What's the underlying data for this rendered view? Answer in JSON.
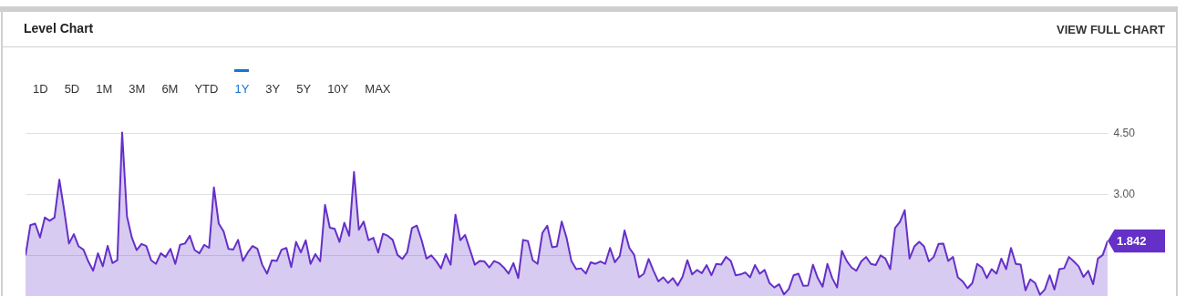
{
  "chart_data": {
    "type": "area",
    "title": "Level Chart",
    "categories": [
      null,
      null,
      null,
      null,
      null,
      null,
      null,
      null,
      null,
      null,
      null,
      null,
      null,
      null,
      null,
      null,
      null,
      null,
      null,
      null,
      null,
      null,
      null,
      null,
      null,
      null,
      null,
      null,
      null,
      null,
      null,
      null,
      null,
      null,
      null,
      null,
      null,
      null,
      null,
      null,
      null,
      null,
      null,
      null,
      null,
      null,
      null,
      null,
      null,
      null,
      null,
      null,
      null,
      null,
      null,
      null,
      null,
      null,
      null,
      null,
      null,
      null,
      null,
      null,
      null,
      null,
      null,
      null,
      null,
      null,
      null,
      null,
      null,
      null,
      null,
      null,
      null,
      null,
      null,
      null,
      null,
      null,
      null,
      null,
      null,
      null,
      null,
      null,
      null,
      null,
      null,
      null,
      null,
      null,
      null,
      null,
      null,
      null,
      null,
      null,
      null,
      null,
      null,
      null,
      null,
      null,
      null,
      null,
      null,
      null,
      null,
      null,
      null,
      null,
      null,
      null,
      null,
      null,
      null,
      null,
      null,
      null,
      null,
      null,
      null,
      null,
      null,
      null,
      null,
      null,
      null,
      null,
      null,
      null,
      null,
      null,
      null,
      null,
      null,
      null,
      null,
      null,
      null,
      null,
      null,
      null,
      null,
      null,
      null,
      null,
      null,
      null,
      null,
      null,
      null,
      null,
      null,
      null,
      null,
      null,
      null,
      null,
      null,
      null,
      null,
      null,
      null,
      null,
      null,
      null,
      null,
      null,
      null,
      null,
      null,
      null,
      null,
      null,
      null,
      null,
      null,
      null,
      null,
      null,
      null,
      null,
      null,
      null,
      null,
      null,
      null,
      null,
      null,
      null,
      null,
      null,
      null,
      null,
      null,
      null,
      null,
      null,
      null,
      null,
      null,
      null,
      null,
      null,
      null,
      null,
      null,
      null,
      null,
      null,
      null,
      null,
      null,
      null,
      null,
      null,
      null,
      null,
      null,
      null,
      null
    ],
    "series": [
      {
        "color": "#6530c8",
        "values": [
          1.49,
          2.23,
          2.27,
          1.93,
          2.42,
          2.34,
          2.42,
          3.35,
          2.6,
          1.78,
          2.01,
          1.71,
          1.63,
          1.34,
          1.11,
          1.54,
          1.22,
          1.72,
          1.3,
          1.37,
          4.51,
          2.45,
          1.93,
          1.62,
          1.77,
          1.72,
          1.37,
          1.28,
          1.54,
          1.45,
          1.65,
          1.28,
          1.75,
          1.78,
          1.97,
          1.62,
          1.54,
          1.75,
          1.67,
          3.16,
          2.27,
          2.08,
          1.65,
          1.63,
          1.87,
          1.35,
          1.56,
          1.72,
          1.65,
          1.26,
          1.04,
          1.37,
          1.35,
          1.63,
          1.67,
          1.2,
          1.82,
          1.56,
          1.86,
          1.28,
          1.52,
          1.34,
          2.73,
          2.17,
          2.14,
          1.82,
          2.29,
          1.97,
          3.54,
          2.12,
          2.32,
          1.86,
          1.92,
          1.56,
          2.02,
          1.97,
          1.87,
          1.5,
          1.4,
          1.56,
          2.16,
          2.22,
          1.86,
          1.41,
          1.49,
          1.35,
          1.17,
          1.52,
          1.26,
          2.49,
          1.86,
          1.99,
          1.63,
          1.26,
          1.35,
          1.34,
          1.19,
          1.35,
          1.3,
          1.19,
          1.04,
          1.3,
          0.93,
          1.87,
          1.84,
          1.37,
          1.28,
          2.04,
          2.22,
          1.69,
          1.71,
          2.32,
          1.92,
          1.35,
          1.15,
          1.17,
          1.04,
          1.32,
          1.28,
          1.34,
          1.28,
          1.67,
          1.32,
          1.47,
          2.1,
          1.67,
          1.5,
          0.95,
          1.04,
          1.4,
          1.11,
          0.85,
          0.95,
          0.81,
          0.93,
          0.75,
          0.96,
          1.37,
          1.02,
          1.13,
          1.05,
          1.25,
          1.0,
          1.28,
          1.26,
          1.45,
          1.35,
          1.0,
          1.02,
          1.07,
          0.95,
          1.25,
          1.04,
          1.13,
          0.81,
          0.7,
          0.78,
          0.53,
          0.66,
          1.0,
          1.04,
          0.74,
          0.75,
          1.26,
          0.93,
          0.72,
          1.28,
          0.93,
          0.7,
          1.6,
          1.35,
          1.19,
          1.11,
          1.34,
          1.45,
          1.28,
          1.25,
          1.49,
          1.41,
          1.15,
          2.16,
          2.31,
          2.6,
          1.41,
          1.71,
          1.82,
          1.71,
          1.34,
          1.45,
          1.77,
          1.78,
          1.35,
          1.45,
          0.95,
          0.85,
          0.68,
          0.81,
          1.28,
          1.19,
          0.93,
          1.15,
          1.04,
          1.41,
          1.15,
          1.67,
          1.28,
          1.26,
          0.63,
          0.9,
          0.81,
          0.52,
          0.65,
          1.0,
          0.65,
          1.15,
          1.17,
          1.45,
          1.34,
          1.22,
          0.96,
          1.11,
          0.78,
          1.41,
          1.5,
          1.842
        ]
      }
    ],
    "ylim": [
      0.49,
      6.02
    ],
    "yticks": [
      {
        "value": 1.5,
        "label": null
      },
      {
        "value": 3,
        "label": "3.00"
      },
      {
        "value": 4.5,
        "label": "4.50"
      }
    ],
    "grid": "y",
    "tick_labels": "y",
    "annotations": [
      "1D",
      "5D",
      "1M",
      "3M",
      "6M",
      "YTD",
      "1Y",
      "3Y",
      "5Y",
      "10Y",
      "MAX",
      "VIEW FULL CHART",
      "1.842"
    ]
  }
}
